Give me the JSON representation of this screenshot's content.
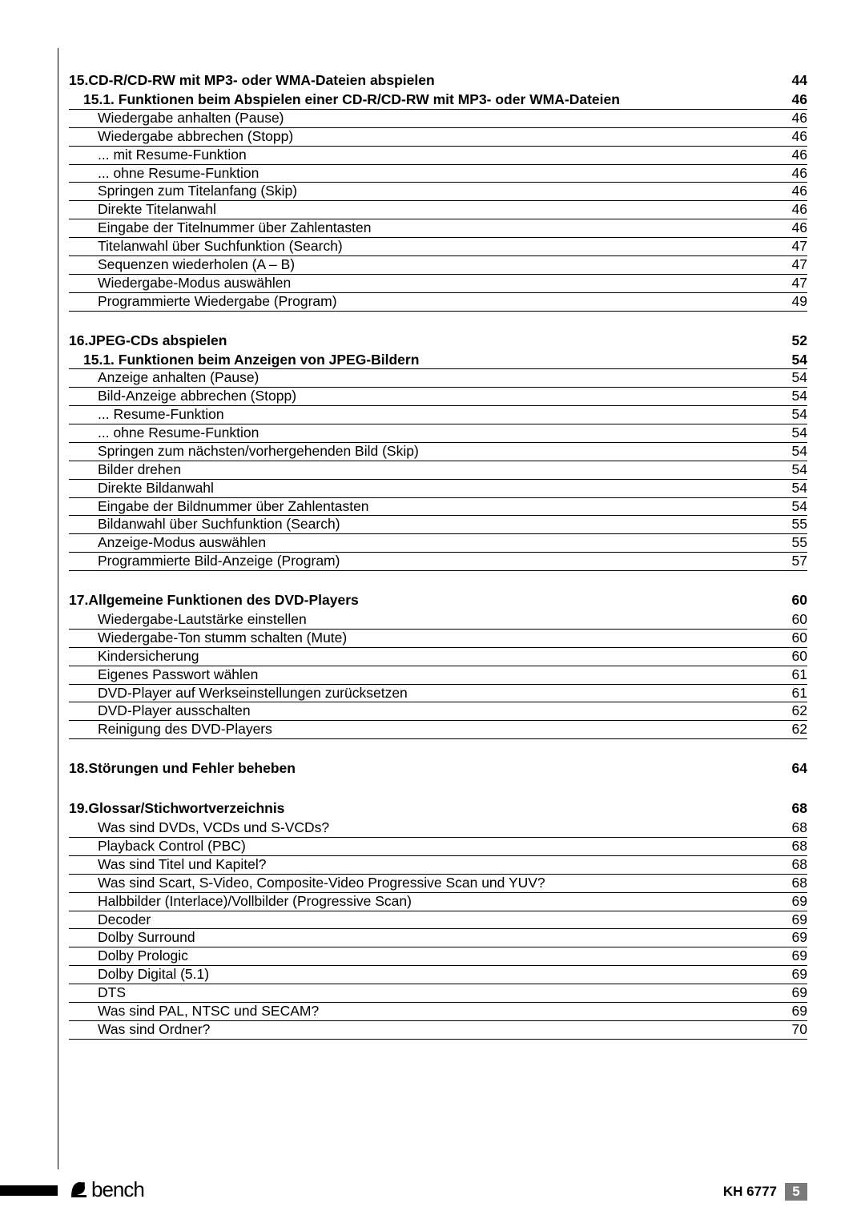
{
  "sections": [
    {
      "num": "15.",
      "title": "CD-R/CD-RW mit MP3- oder WMA-Dateien abspielen",
      "page": "44",
      "subsections": [
        {
          "num": "15.1.",
          "title": "Funktionen beim Abspielen einer CD-R/CD-RW mit MP3- oder WMA-Dateien",
          "page": "46",
          "items": [
            {
              "title": "Wiedergabe anhalten (Pause)",
              "page": "46"
            },
            {
              "title": "Wiedergabe abbrechen (Stopp)",
              "page": "46"
            },
            {
              "title": "... mit Resume-Funktion",
              "page": "46"
            },
            {
              "title": "... ohne Resume-Funktion",
              "page": "46"
            },
            {
              "title": "Springen zum Titelanfang (Skip)",
              "page": "46"
            },
            {
              "title": "Direkte Titelanwahl",
              "page": "46"
            },
            {
              "title": "Eingabe der Titelnummer über Zahlentasten",
              "page": "46"
            },
            {
              "title": "Titelanwahl über Suchfunktion (Search)",
              "page": "47"
            },
            {
              "title": "Sequenzen wiederholen (A – B)",
              "page": "47"
            },
            {
              "title": "Wiedergabe-Modus auswählen",
              "page": "47"
            },
            {
              "title": "Programmierte Wiedergabe (Program)",
              "page": "49"
            }
          ]
        }
      ]
    },
    {
      "num": "16.",
      "title": "JPEG-CDs abspielen",
      "page": "52",
      "subsections": [
        {
          "num": "15.1.",
          "title": "Funktionen beim Anzeigen von JPEG-Bildern",
          "page": "54",
          "items": [
            {
              "title": "Anzeige anhalten (Pause)",
              "page": "54"
            },
            {
              "title": "Bild-Anzeige abbrechen (Stopp)",
              "page": "54"
            },
            {
              "title": "... Resume-Funktion",
              "page": "54"
            },
            {
              "title": "... ohne Resume-Funktion",
              "page": "54"
            },
            {
              "title": "Springen zum nächsten/vorhergehenden Bild (Skip)",
              "page": "54"
            },
            {
              "title": "Bilder drehen",
              "page": "54"
            },
            {
              "title": "Direkte Bildanwahl",
              "page": "54"
            },
            {
              "title": "Eingabe der Bildnummer über Zahlentasten",
              "page": "54"
            },
            {
              "title": "Bildanwahl über Suchfunktion (Search)",
              "page": "55"
            },
            {
              "title": "Anzeige-Modus auswählen",
              "page": "55"
            },
            {
              "title": "Programmierte Bild-Anzeige (Program)",
              "page": "57"
            }
          ]
        }
      ]
    },
    {
      "num": "17.",
      "title": "Allgemeine Funktionen des DVD-Players",
      "page": "60",
      "subsections": [
        {
          "items": [
            {
              "title": "Wiedergabe-Lautstärke einstellen",
              "page": "60"
            },
            {
              "title": "Wiedergabe-Ton stumm schalten (Mute)",
              "page": "60"
            },
            {
              "title": "Kindersicherung",
              "page": "60"
            },
            {
              "title": "Eigenes Passwort wählen",
              "page": "61"
            },
            {
              "title": "DVD-Player auf Werkseinstellungen zurücksetzen",
              "page": "61"
            },
            {
              "title": "DVD-Player ausschalten",
              "page": "62"
            },
            {
              "title": "Reinigung des DVD-Players",
              "page": "62"
            }
          ]
        }
      ]
    },
    {
      "num": "18.",
      "title": "Störungen und Fehler beheben",
      "page": "64",
      "subsections": []
    },
    {
      "num": "19.",
      "title": "Glossar/Stichwortverzeichnis",
      "page": "68",
      "subsections": [
        {
          "items": [
            {
              "title": "Was sind DVDs, VCDs und S-VCDs?",
              "page": "68"
            },
            {
              "title": "Playback Control (PBC)",
              "page": "68"
            },
            {
              "title": "Was sind Titel und Kapitel?",
              "page": "68"
            },
            {
              "title": "Was sind Scart, S-Video, Composite-Video Progressive Scan und YUV?",
              "page": "68"
            },
            {
              "title": "Halbbilder (Interlace)/Vollbilder (Progressive Scan)",
              "page": "69"
            },
            {
              "title": "Decoder",
              "page": "69"
            },
            {
              "title": "Dolby Surround",
              "page": "69"
            },
            {
              "title": "Dolby Prologic",
              "page": "69"
            },
            {
              "title": "Dolby Digital (5.1)",
              "page": "69"
            },
            {
              "title": "DTS",
              "page": "69"
            },
            {
              "title": "Was sind PAL, NTSC und SECAM?",
              "page": "69"
            },
            {
              "title": "Was sind Ordner?",
              "page": "70"
            }
          ]
        }
      ]
    }
  ],
  "footer": {
    "brand": "bench",
    "model": "KH 6777",
    "page_number": "5"
  }
}
